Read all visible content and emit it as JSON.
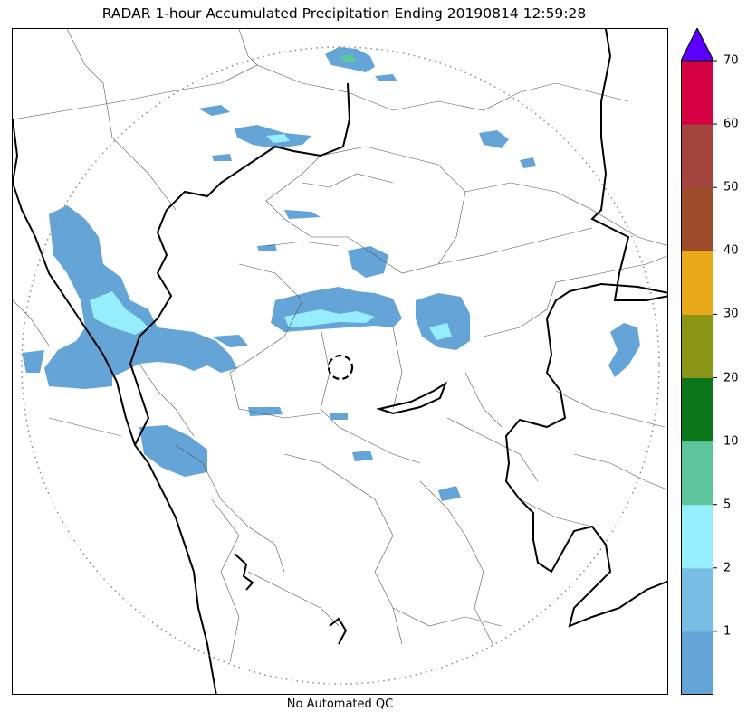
{
  "title": "RADAR 1-hour Accumulated Precipitation Ending 20190814 12:59:28",
  "footer": "No Automated QC",
  "colorbar": {
    "extend": "max",
    "bins": [
      {
        "color": "#64a4d6"
      },
      {
        "color": "#78bde3"
      },
      {
        "color": "#96eefc"
      },
      {
        "color": "#5ec49c"
      },
      {
        "color": "#0c7419"
      },
      {
        "color": "#8a9516"
      },
      {
        "color": "#e8a919"
      },
      {
        "color": "#9b4c2a"
      },
      {
        "color": "#a44540"
      },
      {
        "color": "#d60045"
      }
    ],
    "extend_color": "#5a00ff",
    "ticks": [
      "1",
      "2",
      "5",
      "10",
      "20",
      "30",
      "40",
      "50",
      "60",
      "70"
    ]
  },
  "range_ring": "dotted",
  "radar_site_marker": "dashed-circle"
}
